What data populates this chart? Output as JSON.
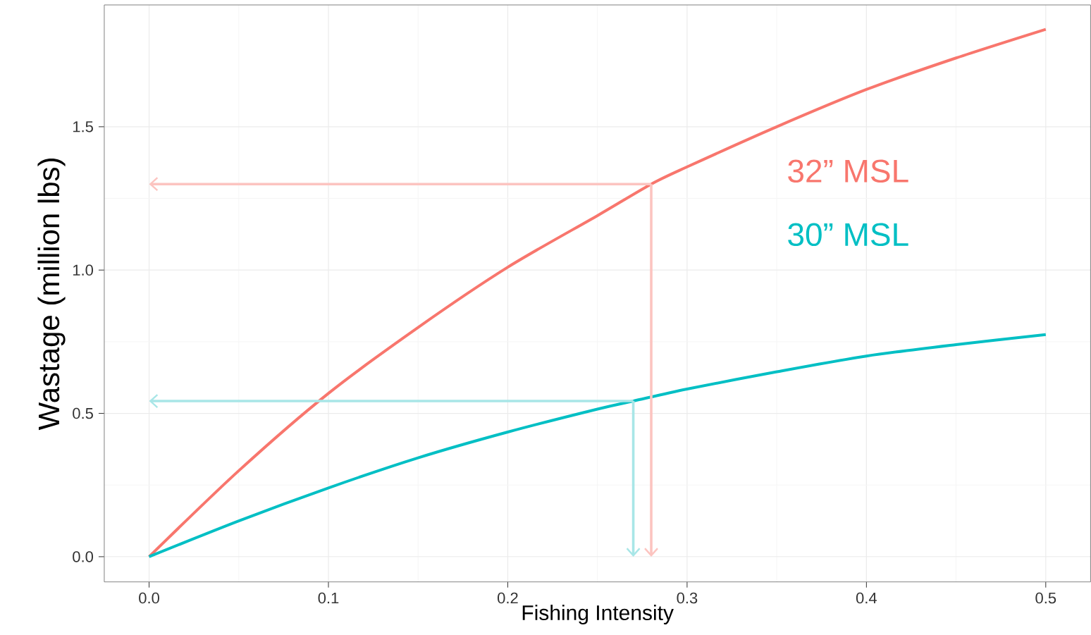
{
  "chart_data": {
    "type": "line",
    "xlabel": "Fishing Intensity",
    "ylabel": "Wastage (million lbs)",
    "xlim": [
      -0.025,
      0.525
    ],
    "ylim": [
      -0.088,
      1.925
    ],
    "xticks": [
      {
        "value": 0,
        "label": "0.0"
      },
      0.1,
      0.2,
      0.3,
      0.4,
      0.5
    ],
    "yticks": [
      {
        "value": 0,
        "label": "0.0"
      },
      0.5,
      {
        "value": 1,
        "label": "1.0"
      },
      1.5
    ],
    "grid": true,
    "series": [
      {
        "name": "32” MSL",
        "color": "#f8766d",
        "x": [
          0,
          0.05,
          0.1,
          0.15,
          0.2,
          0.25,
          0.28,
          0.3,
          0.35,
          0.4,
          0.45,
          0.5
        ],
        "values": [
          0,
          0.3,
          0.57,
          0.8,
          1.01,
          1.19,
          1.3,
          1.36,
          1.5,
          1.63,
          1.74,
          1.84
        ]
      },
      {
        "name": "30” MSL",
        "color": "#00bfc4",
        "x": [
          0,
          0.05,
          0.1,
          0.15,
          0.2,
          0.25,
          0.27,
          0.3,
          0.35,
          0.4,
          0.45,
          0.5
        ],
        "values": [
          0,
          0.125,
          0.24,
          0.345,
          0.435,
          0.515,
          0.543,
          0.585,
          0.645,
          0.7,
          0.74,
          0.775
        ]
      }
    ],
    "ref_lines": [
      {
        "axis": "x",
        "value": 0.28,
        "color": "#fcc4c0"
      },
      {
        "axis": "y",
        "value": 1.3,
        "color": "#fcc4c0"
      },
      {
        "axis": "x",
        "value": 0.27,
        "color": "#a8e6e7"
      },
      {
        "axis": "y",
        "value": 0.543,
        "color": "#a8e6e7"
      }
    ]
  }
}
